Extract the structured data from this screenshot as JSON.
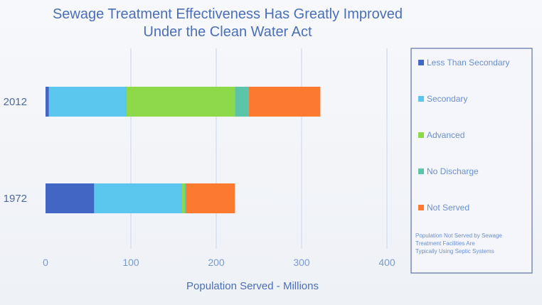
{
  "chart_data": {
    "type": "bar",
    "orientation": "horizontal",
    "stacked": true,
    "title": "Sewage Treatment Effectiveness Has Greatly Improved",
    "subtitle": "Under the Clean Water Act",
    "xlabel": "Population Served - Millions",
    "ylabel": "",
    "xlim": [
      0,
      400
    ],
    "xticks": [
      0,
      100,
      200,
      300,
      400
    ],
    "grid": true,
    "legend_position": "right",
    "categories": [
      "2012",
      "1972"
    ],
    "series": [
      {
        "name": "Less Than Secondary",
        "color": "#4266c4",
        "values": [
          4,
          57
        ]
      },
      {
        "name": "Secondary",
        "color": "#5bc6ee",
        "values": [
          91,
          103
        ]
      },
      {
        "name": "Advanced",
        "color": "#8ed94a",
        "values": [
          127,
          3
        ]
      },
      {
        "name": "No Discharge",
        "color": "#5cc4a8",
        "values": [
          16,
          2
        ]
      },
      {
        "name": "Not Served",
        "color": "#fb7a30",
        "values": [
          84,
          57
        ]
      }
    ],
    "annotation": "Population Not Served by Sewage Treatment Facilities Are Typically Using Septic Systems"
  }
}
